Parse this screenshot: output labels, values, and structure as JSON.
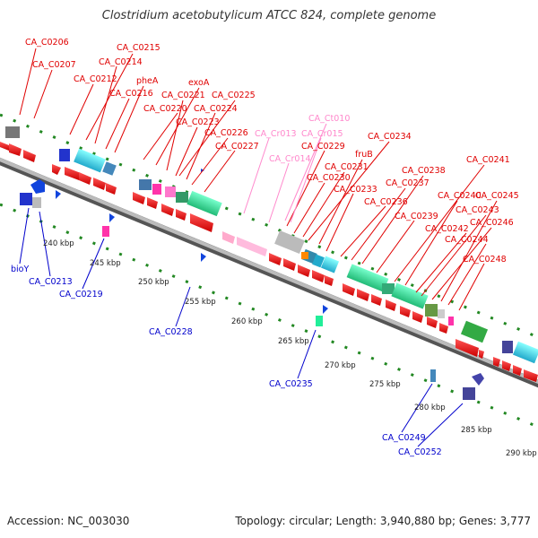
{
  "title": "Clostridium acetobutylicum ATCC 824, complete genome",
  "footer": {
    "accession": "Accession: NC_003030",
    "summary": "Topology: circular; Length: 3,940,880 bp; Genes: 3,777"
  },
  "colors": {
    "forward_label": "#e00000",
    "rna_label": "#ff88cc",
    "reverse_label": "#0000cc",
    "backbone": "#999999",
    "tick": "#228822"
  },
  "kbp_ticks": [
    "240 kbp",
    "245 kbp",
    "250 kbp",
    "255 kbp",
    "260 kbp",
    "265 kbp",
    "270 kbp",
    "275 kbp",
    "280 kbp",
    "285 kbp",
    "290 kbp"
  ],
  "forward_labels": [
    "CA_C0206",
    "CA_C0207",
    "CA_C0215",
    "CA_C0214",
    "CA_C0212",
    "pheA",
    "CA_C0216",
    "exoA",
    "CA_C0221",
    "CA_C0225",
    "CA_C0220",
    "CA_C0224",
    "CA_C0223",
    "CA_C0226",
    "CA_C0227",
    "CA_C0229",
    "CA_C0234",
    "fruB",
    "CA_C0231",
    "CA_C0230",
    "CA_C0233",
    "CA_C0238",
    "CA_C0237",
    "CA_C0241",
    "CA_C0236",
    "CA_C0240",
    "CA_C0239",
    "CA_C0243",
    "CA_C0245",
    "CA_C0242",
    "CA_C0246",
    "CA_C0244",
    "CA_C0248"
  ],
  "rna_labels": [
    "CA_Ct010",
    "CA_Cr013",
    "CA_Cr015",
    "CA_Cr014"
  ],
  "reverse_labels": [
    "bioY",
    "CA_C0213",
    "CA_C0219",
    "CA_C0228",
    "CA_C0235",
    "CA_C0249",
    "CA_C0252"
  ]
}
